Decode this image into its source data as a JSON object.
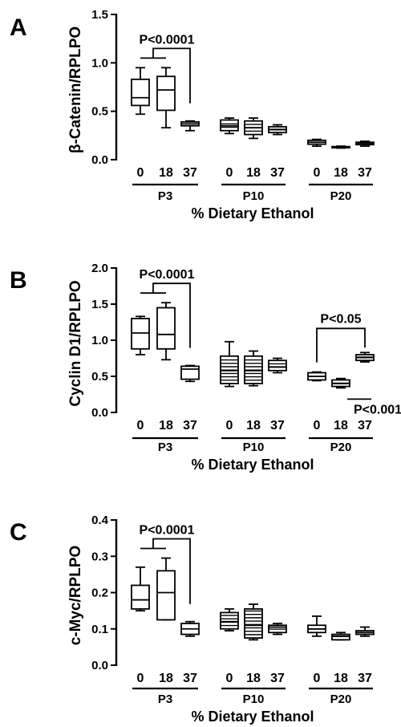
{
  "chart_data": [
    {
      "type": "box",
      "panel_letter": "A",
      "ylabel": "β-Catenin/RPLPO",
      "xlabel": "% Dietary Ethanol",
      "ylim": [
        0,
        1.5
      ],
      "yticks": [
        "0.0",
        "0.5",
        "1.0",
        "1.5"
      ],
      "groups": [
        {
          "label": "P3",
          "boxes": [
            {
              "x": "0",
              "min": 0.47,
              "q1": 0.56,
              "median": 0.64,
              "q3": 0.83,
              "max": 0.95
            },
            {
              "x": "18",
              "min": 0.33,
              "q1": 0.51,
              "median": 0.72,
              "q3": 0.86,
              "max": 0.95
            },
            {
              "x": "37",
              "min": 0.3,
              "q1": 0.35,
              "median": 0.37,
              "q3": 0.39,
              "max": 0.4
            }
          ]
        },
        {
          "label": "P10",
          "boxes": [
            {
              "x": "0",
              "min": 0.27,
              "q1": 0.3,
              "median": 0.35,
              "q3": 0.41,
              "max": 0.43
            },
            {
              "x": "18",
              "min": 0.22,
              "q1": 0.26,
              "median": 0.33,
              "q3": 0.4,
              "max": 0.43
            },
            {
              "x": "37",
              "min": 0.26,
              "q1": 0.28,
              "median": 0.31,
              "q3": 0.34,
              "max": 0.36
            }
          ]
        },
        {
          "label": "P20",
          "boxes": [
            {
              "x": "0",
              "min": 0.14,
              "q1": 0.16,
              "median": 0.18,
              "q3": 0.2,
              "max": 0.21
            },
            {
              "x": "18",
              "min": 0.12,
              "q1": 0.125,
              "median": 0.13,
              "q3": 0.135,
              "max": 0.14
            },
            {
              "x": "37",
              "min": 0.14,
              "q1": 0.155,
              "median": 0.17,
              "q3": 0.18,
              "max": 0.19
            }
          ]
        }
      ],
      "annotations": [
        {
          "text": "P<0.0001",
          "group": 0,
          "bracket": "split"
        }
      ]
    },
    {
      "type": "box",
      "panel_letter": "B",
      "ylabel": "Cyclin D1/RPLPO",
      "xlabel": "% Dietary Ethanol",
      "ylim": [
        0,
        2.0
      ],
      "yticks": [
        "0.0",
        "0.5",
        "1.0",
        "1.5",
        "2.0"
      ],
      "groups": [
        {
          "label": "P3",
          "boxes": [
            {
              "x": "0",
              "min": 0.8,
              "q1": 0.88,
              "median": 1.1,
              "q3": 1.3,
              "max": 1.33
            },
            {
              "x": "18",
              "min": 0.73,
              "q1": 0.88,
              "median": 1.08,
              "q3": 1.45,
              "max": 1.52
            },
            {
              "x": "37",
              "min": 0.43,
              "q1": 0.46,
              "median": 0.6,
              "q3": 0.64,
              "max": 0.65
            }
          ]
        },
        {
          "label": "P10",
          "boxes": [
            {
              "x": "0",
              "min": 0.36,
              "q1": 0.4,
              "median": 0.58,
              "q3": 0.78,
              "max": 0.98
            },
            {
              "x": "18",
              "min": 0.37,
              "q1": 0.4,
              "median": 0.58,
              "q3": 0.78,
              "max": 0.85
            },
            {
              "x": "37",
              "min": 0.55,
              "q1": 0.58,
              "median": 0.63,
              "q3": 0.72,
              "max": 0.75
            }
          ]
        },
        {
          "label": "P20",
          "boxes": [
            {
              "x": "0",
              "min": 0.44,
              "q1": 0.45,
              "median": 0.5,
              "q3": 0.55,
              "max": 0.56
            },
            {
              "x": "18",
              "min": 0.34,
              "q1": 0.36,
              "median": 0.4,
              "q3": 0.45,
              "max": 0.47
            },
            {
              "x": "37",
              "min": 0.7,
              "q1": 0.72,
              "median": 0.76,
              "q3": 0.8,
              "max": 0.83
            }
          ]
        }
      ],
      "annotations": [
        {
          "text": "P<0.0001",
          "group": 0,
          "bracket": "split"
        },
        {
          "text": "P<0.05",
          "group": 2,
          "bracket": "outer"
        },
        {
          "text": "P<0.001",
          "group": 2,
          "bracket": "inner"
        }
      ]
    },
    {
      "type": "box",
      "panel_letter": "C",
      "ylabel": "c-Myc/RPLPO",
      "xlabel": "% Dietary Ethanol",
      "ylim": [
        0,
        0.4
      ],
      "yticks": [
        "0.0",
        "0.1",
        "0.2",
        "0.3",
        "0.4"
      ],
      "groups": [
        {
          "label": "P3",
          "boxes": [
            {
              "x": "0",
              "min": 0.15,
              "q1": 0.155,
              "median": 0.18,
              "q3": 0.22,
              "max": 0.27
            },
            {
              "x": "18",
              "min": 0.125,
              "q1": 0.125,
              "median": 0.2,
              "q3": 0.26,
              "max": 0.295
            },
            {
              "x": "37",
              "min": 0.08,
              "q1": 0.085,
              "median": 0.1,
              "q3": 0.115,
              "max": 0.12
            }
          ]
        },
        {
          "label": "P10",
          "boxes": [
            {
              "x": "0",
              "min": 0.095,
              "q1": 0.1,
              "median": 0.12,
              "q3": 0.145,
              "max": 0.155
            },
            {
              "x": "18",
              "min": 0.07,
              "q1": 0.075,
              "median": 0.11,
              "q3": 0.155,
              "max": 0.168
            },
            {
              "x": "37",
              "min": 0.085,
              "q1": 0.09,
              "median": 0.105,
              "q3": 0.11,
              "max": 0.115
            }
          ]
        },
        {
          "label": "P20",
          "boxes": [
            {
              "x": "0",
              "min": 0.08,
              "q1": 0.09,
              "median": 0.1,
              "q3": 0.11,
              "max": 0.135
            },
            {
              "x": "18",
              "min": 0.07,
              "q1": 0.07,
              "median": 0.08,
              "q3": 0.085,
              "max": 0.09
            },
            {
              "x": "37",
              "min": 0.08,
              "q1": 0.085,
              "median": 0.09,
              "q3": 0.095,
              "max": 0.105
            }
          ]
        }
      ],
      "annotations": [
        {
          "text": "P<0.0001",
          "group": 0,
          "bracket": "split"
        }
      ]
    }
  ]
}
